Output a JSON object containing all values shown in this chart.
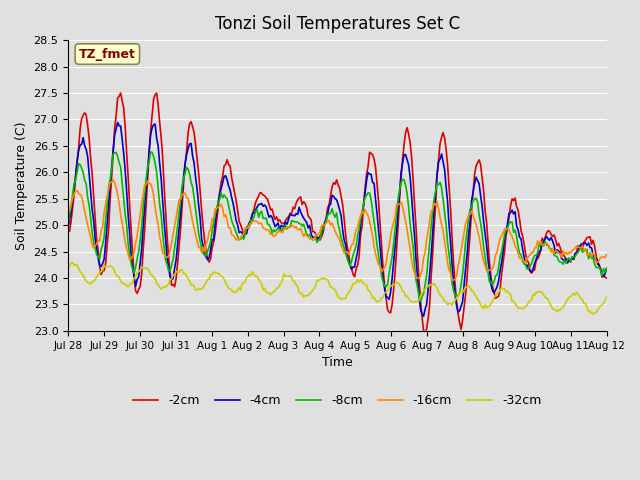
{
  "title": "Tonzi Soil Temperatures Set C",
  "xlabel": "Time",
  "ylabel": "Soil Temperature (C)",
  "ylim": [
    23.0,
    28.5
  ],
  "yticks": [
    23.0,
    23.5,
    24.0,
    24.5,
    25.0,
    25.5,
    26.0,
    26.5,
    27.0,
    27.5,
    28.0,
    28.5
  ],
  "bg_color": "#e0e0e0",
  "plot_bg_color": "#e0e0e0",
  "legend_labels": [
    "-2cm",
    "-4cm",
    "-8cm",
    "-16cm",
    "-32cm"
  ],
  "line_colors": [
    "#dd0000",
    "#0000cc",
    "#00bb00",
    "#ff8800",
    "#cccc00"
  ],
  "annotation_text": "TZ_fmet",
  "annotation_bg": "#ffffcc",
  "annotation_fg": "#880000",
  "n_points": 360,
  "start_day": 0,
  "end_day": 15.0,
  "xtick_positions": [
    0,
    1,
    2,
    3,
    4,
    5,
    6,
    7,
    8,
    9,
    10,
    11,
    12,
    13,
    14,
    15
  ],
  "xtick_labels": [
    "Jul 28",
    "Jul 29",
    "Jul 30",
    "Jul 31",
    "Aug 1",
    "Aug 2",
    "Aug 3",
    "Aug 4",
    "Aug 5",
    "Aug 6",
    "Aug 7",
    "Aug 8",
    "Aug 9",
    "Aug 10",
    "Aug 11",
    "Aug 12"
  ]
}
